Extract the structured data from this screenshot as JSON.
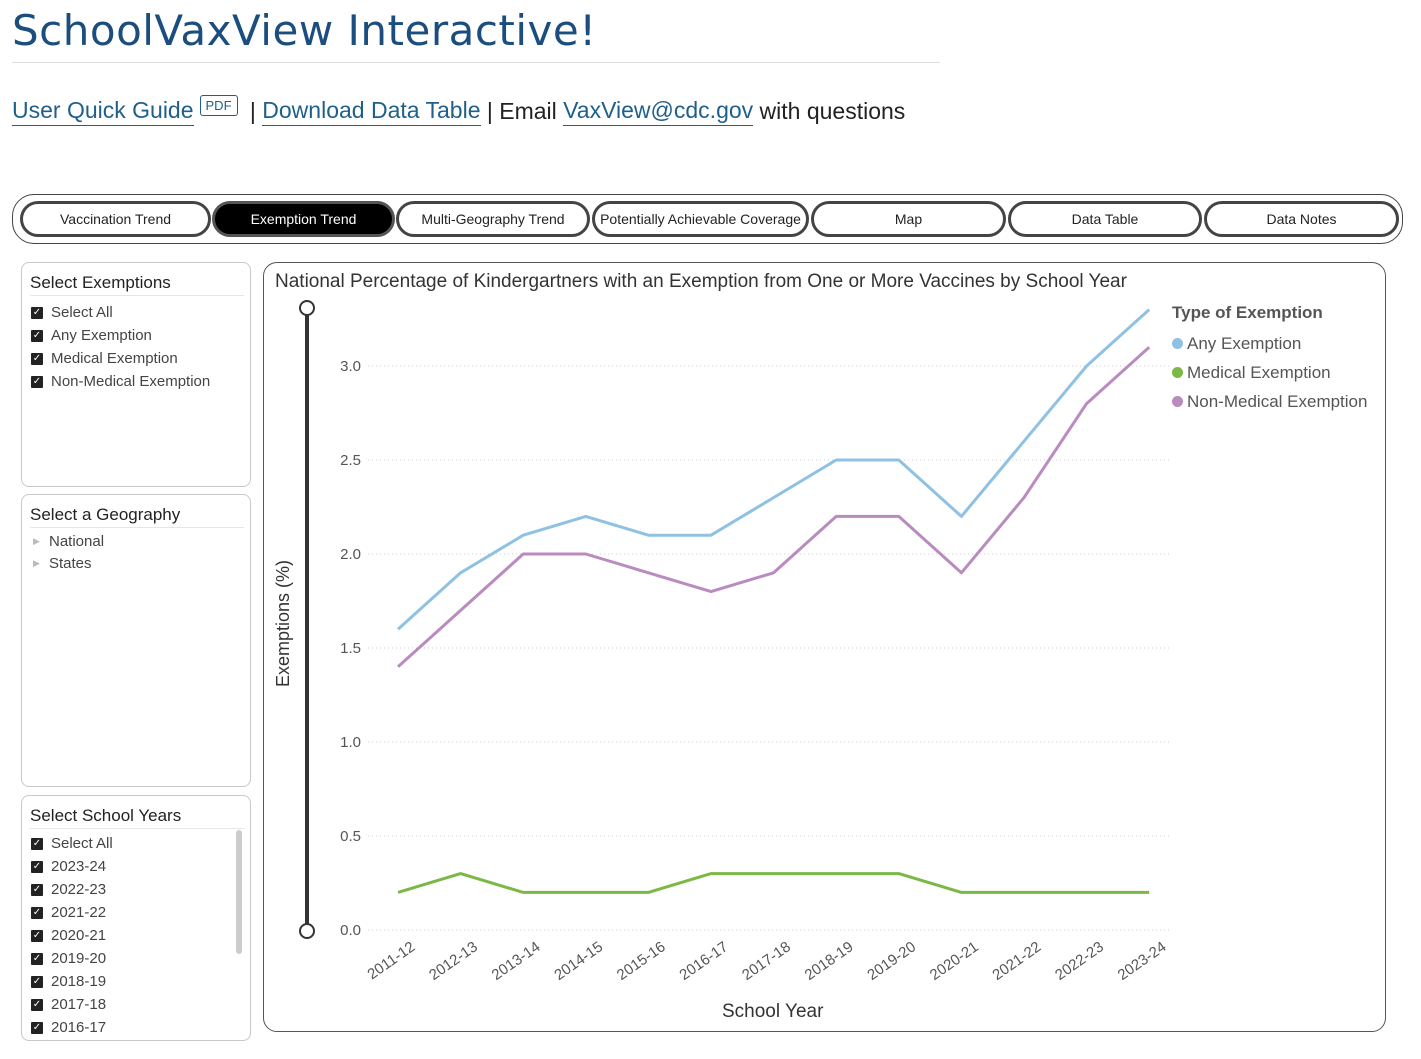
{
  "header": {
    "title": "SchoolVaxView Interactive!",
    "links": {
      "guide_label": "User Quick Guide",
      "pdf_badge": "PDF",
      "separator1": " | ",
      "download_label": "Download Data Table",
      "separator2": " | Email ",
      "email_label": "VaxView@cdc.gov",
      "suffix": " with questions"
    }
  },
  "tabs": [
    {
      "label": "Vaccination Trend",
      "active": false
    },
    {
      "label": "Exemption Trend",
      "active": true
    },
    {
      "label": "Multi-Geography Trend",
      "active": false
    },
    {
      "label": "Potentially Achievable Coverage",
      "active": false
    },
    {
      "label": "Map",
      "active": false
    },
    {
      "label": "Data Table",
      "active": false
    },
    {
      "label": "Data Notes",
      "active": false
    }
  ],
  "filters": {
    "exemptions": {
      "title": "Select Exemptions",
      "items": [
        "Select All",
        "Any Exemption",
        "Medical Exemption",
        "Non-Medical Exemption"
      ]
    },
    "geography": {
      "title": "Select a Geography",
      "items": [
        "National",
        "States"
      ]
    },
    "school_years": {
      "title": "Select School Years",
      "items": [
        "Select All",
        "2023-24",
        "2022-23",
        "2021-22",
        "2020-21",
        "2019-20",
        "2018-19",
        "2017-18",
        "2016-17"
      ]
    }
  },
  "colors": {
    "any": "#8fc1e3",
    "medical": "#7cb845",
    "non_medical": "#b98bbf",
    "title_blue": "#1b4e7e",
    "link_blue": "#1f5f8b"
  },
  "chart_data": {
    "type": "line",
    "title": "National Percentage of Kindergartners with an Exemption from One or More Vaccines by School Year",
    "xlabel": "School Year",
    "ylabel": "Exemptions (%)",
    "ylim": [
      0,
      3.3
    ],
    "yticks": [
      "0.0",
      "0.5",
      "1.0",
      "1.5",
      "2.0",
      "2.5",
      "3.0"
    ],
    "grid": true,
    "legend_title": "Type of Exemption",
    "legend_position": "right",
    "categories": [
      "2011-12",
      "2012-13",
      "2013-14",
      "2014-15",
      "2015-16",
      "2016-17",
      "2017-18",
      "2018-19",
      "2019-20",
      "2020-21",
      "2021-22",
      "2022-23",
      "2023-24"
    ],
    "series": [
      {
        "name": "Any Exemption",
        "color": "#8fc1e3",
        "values": [
          1.6,
          1.9,
          2.1,
          2.2,
          2.1,
          2.1,
          2.3,
          2.5,
          2.5,
          2.2,
          2.6,
          3.0,
          3.3
        ]
      },
      {
        "name": "Medical Exemption",
        "color": "#7cb845",
        "values": [
          0.2,
          0.3,
          0.2,
          0.2,
          0.2,
          0.3,
          0.3,
          0.3,
          0.3,
          0.2,
          0.2,
          0.2,
          0.2
        ]
      },
      {
        "name": "Non-Medical Exemption",
        "color": "#b98bbf",
        "values": [
          1.4,
          1.7,
          2.0,
          2.0,
          1.9,
          1.8,
          1.9,
          2.2,
          2.2,
          1.9,
          2.3,
          2.8,
          3.1
        ]
      }
    ]
  }
}
